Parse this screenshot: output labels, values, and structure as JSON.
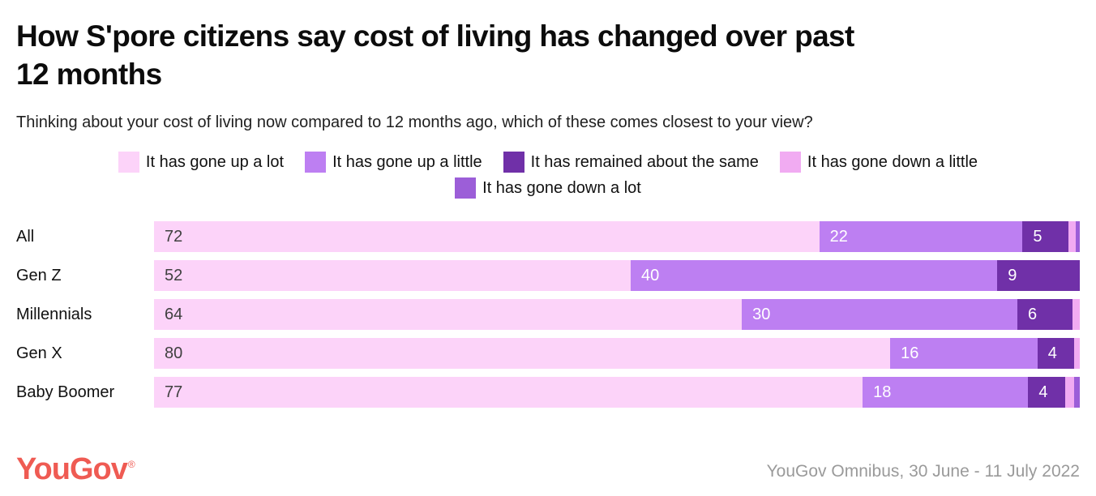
{
  "header": {
    "title": "How S'pore citizens say cost of living has changed over past 12 months",
    "title_lines": [
      "How S'pore citizens say cost of living has changed over past",
      "12 months"
    ],
    "subtitle": "Thinking about your cost of living now compared to 12 months ago, which of these comes closest to your view?"
  },
  "legend": {
    "rows": [
      [
        0,
        1,
        2,
        3
      ],
      [
        4
      ]
    ]
  },
  "chart_data": {
    "type": "bar",
    "orientation": "horizontal",
    "stacked": true,
    "unit": "percent",
    "xlim": [
      0,
      100
    ],
    "grid": false,
    "legend_position": "top",
    "label_min_value": 2,
    "categories": [
      "All",
      "Gen Z",
      "Millennials",
      "Gen X",
      "Baby Boomer"
    ],
    "series": [
      {
        "name": "It has gone up a lot",
        "color": "#fcd3f9",
        "label_color": "#404040",
        "values": [
          72,
          52,
          64,
          80,
          77
        ]
      },
      {
        "name": "It has gone up a little",
        "color": "#bd7ff2",
        "label_color": "#ffffff",
        "values": [
          22,
          40,
          30,
          16,
          18
        ]
      },
      {
        "name": "It has remained about the same",
        "color": "#7030a8",
        "label_color": "#ffffff",
        "values": [
          5,
          9,
          6,
          4,
          4
        ]
      },
      {
        "name": "It has gone down a little",
        "color": "#f1abf2",
        "label_color": "#404040",
        "values": [
          0.8,
          0,
          0.8,
          0.6,
          1
        ]
      },
      {
        "name": "It has gone down a lot",
        "color": "#9c5ed8",
        "label_color": "#ffffff",
        "values": [
          0.4,
          0,
          0,
          0,
          0.6
        ]
      }
    ]
  },
  "footer": {
    "logo_text": "YouGov",
    "logo_registered": "®",
    "logo_color": "#ef5b53",
    "source": "YouGov Omnibus, 30 June - 11 July 2022"
  }
}
